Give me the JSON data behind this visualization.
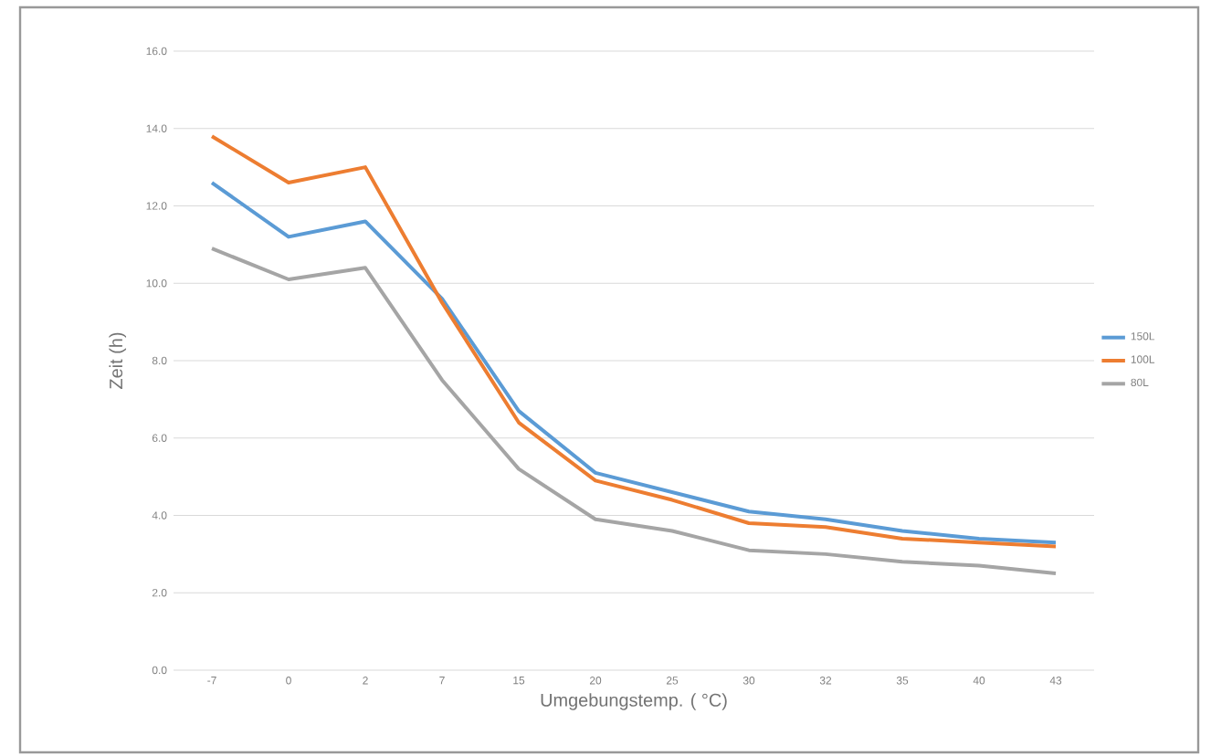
{
  "chart_data": {
    "type": "line",
    "xlabel": "Umgebungstemp. ( °C)",
    "ylabel": "Zeit (h)",
    "categories": [
      "-7",
      "0",
      "2",
      "7",
      "15",
      "20",
      "25",
      "30",
      "32",
      "35",
      "40",
      "43"
    ],
    "series": [
      {
        "name": "150L",
        "color": "#5b9bd5",
        "values": [
          12.6,
          11.2,
          11.6,
          9.6,
          6.7,
          5.1,
          4.6,
          4.1,
          3.9,
          3.6,
          3.4,
          3.3
        ]
      },
      {
        "name": "100L",
        "color": "#ed7d31",
        "values": [
          13.8,
          12.6,
          13.0,
          9.5,
          6.4,
          4.9,
          4.4,
          3.8,
          3.7,
          3.4,
          3.3,
          3.2
        ]
      },
      {
        "name": "80L",
        "color": "#a5a5a5",
        "values": [
          10.9,
          10.1,
          10.4,
          7.5,
          5.2,
          3.9,
          3.6,
          3.1,
          3.0,
          2.8,
          2.7,
          2.5
        ]
      }
    ],
    "ylim": [
      0,
      16
    ],
    "yticks": [
      {
        "value": 0,
        "label": "0.0"
      },
      {
        "value": 2,
        "label": "2.0"
      },
      {
        "value": 4,
        "label": "4.0"
      },
      {
        "value": 6,
        "label": "6.0"
      },
      {
        "value": 8,
        "label": "8.0"
      },
      {
        "value": 10,
        "label": "10.0"
      },
      {
        "value": 12,
        "label": "12.0"
      },
      {
        "value": 14,
        "label": "14.0"
      },
      {
        "value": 16,
        "label": "16.0"
      }
    ],
    "grid": "y",
    "legend": "right",
    "marker": "none",
    "line_style": "solid"
  }
}
